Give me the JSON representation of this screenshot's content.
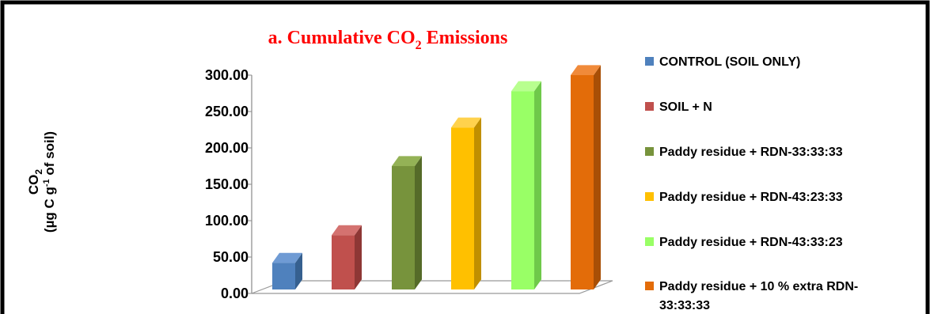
{
  "chart_data": {
    "type": "bar",
    "title": {
      "prefix": "a. Cumulative CO",
      "subscript": "2",
      "suffix": " Emissions"
    },
    "ylabel": {
      "line1_main": "CO",
      "line1_sub": "2",
      "line2_a": "(µg C g",
      "line2_sup": "-1",
      "line2_b": " of soil)"
    },
    "ylim": [
      0,
      300
    ],
    "yticks": [
      "300.00",
      "250.00",
      "200.00",
      "150.00",
      "100.00",
      "50.00",
      "0.00"
    ],
    "ytick_values": [
      300,
      250,
      200,
      150,
      100,
      50,
      0
    ],
    "series": [
      {
        "name": "CONTROL (SOIL ONLY)",
        "value": 42,
        "color": "#4f81bd",
        "side": "#36608f",
        "top": "#6f9bd4"
      },
      {
        "name": "SOIL + N",
        "value": 80,
        "color": "#c0504d",
        "side": "#8e3735",
        "top": "#d47270"
      },
      {
        "name": "Paddy residue + RDN-33:33:33",
        "value": 175,
        "color": "#77933c",
        "side": "#556b29",
        "top": "#94b256"
      },
      {
        "name": "Paddy residue + RDN-43:23:33",
        "value": 228,
        "color": "#ffc000",
        "side": "#c08f00",
        "top": "#ffd24d"
      },
      {
        "name": "Paddy residue + RDN-43:33:23",
        "value": 278,
        "color": "#99ff66",
        "side": "#6fc94a",
        "top": "#b8ff8f"
      },
      {
        "name": "Paddy residue + 10 % extra RDN-33:33:33",
        "value": 300,
        "color": "#e36c09",
        "side": "#a84f06",
        "top": "#f08a3a"
      }
    ],
    "legend": {
      "position": "right",
      "last_label_line1": "Paddy residue + 10 % extra RDN-",
      "last_label_line2": "33:33:33"
    },
    "grid": false
  }
}
